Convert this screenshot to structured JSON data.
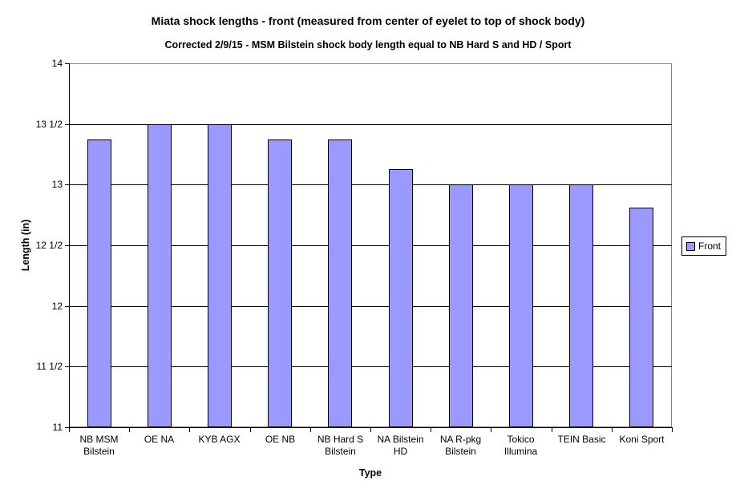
{
  "chart_data": {
    "type": "bar",
    "title": "Miata shock lengths - front (measured from center of eyelet to top of shock body)",
    "subtitle": "Corrected 2/9/15 - MSM Bilstein shock body length equal to NB Hard S and HD / Sport",
    "xlabel": "Type",
    "ylabel": "Length (in)",
    "categories": [
      "NB MSM\nBilstein",
      "OE NA",
      "KYB AGX",
      "OE NB",
      "NB Hard S\nBilstein",
      "NA Bilstein\nHD",
      "NA R-pkg\nBilstein",
      "Tokico\nIllumina",
      "TEIN Basic",
      "Koni Sport"
    ],
    "series": [
      {
        "name": "Front",
        "values": [
          13.375,
          13.5,
          13.5,
          13.375,
          13.375,
          13.125,
          13,
          13,
          13,
          12.8125
        ],
        "color": "#9999ff",
        "border_color": "#000000"
      }
    ],
    "ylim": [
      11,
      14
    ],
    "yticks": [
      {
        "value": 11,
        "label": "11"
      },
      {
        "value": 11.5,
        "label": "11 1/2"
      },
      {
        "value": 12,
        "label": "12"
      },
      {
        "value": 12.5,
        "label": "12 1/2"
      },
      {
        "value": 13,
        "label": "13"
      },
      {
        "value": 13.5,
        "label": "13 1/2"
      },
      {
        "value": 14,
        "label": "14"
      }
    ],
    "grid": "horizontal",
    "legend_position": "right",
    "plot_border_color": "#848284",
    "gridline_color": "#000000",
    "background_color": "#ffffff"
  }
}
